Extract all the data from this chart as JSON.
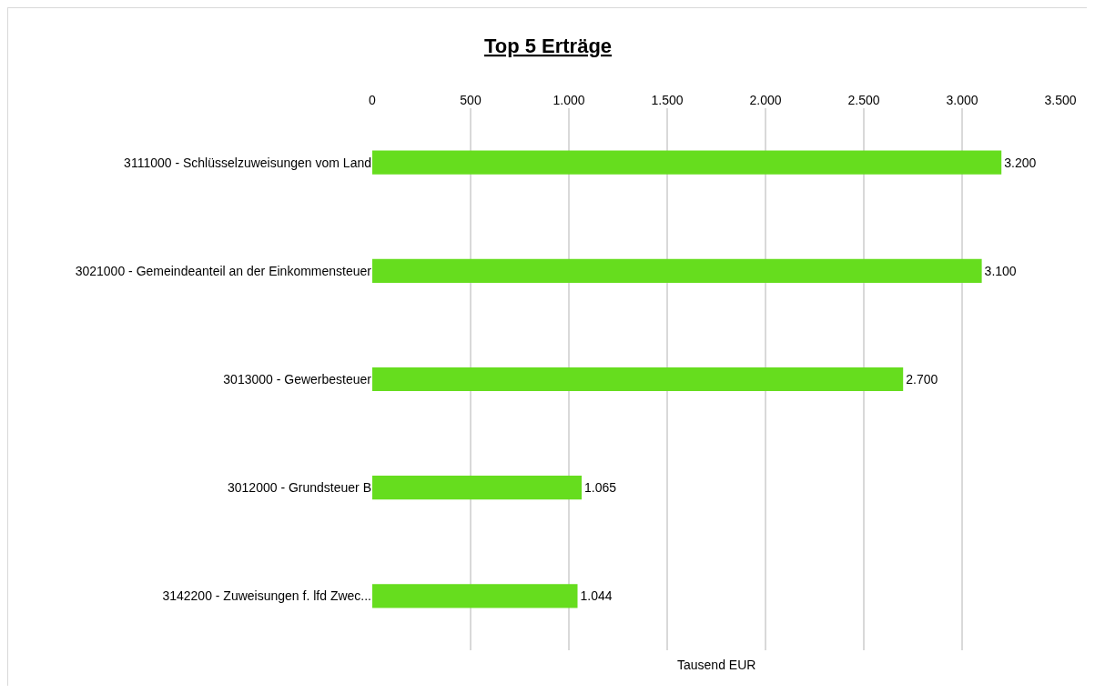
{
  "chart_data": {
    "type": "bar",
    "title": "Top 5 Erträge",
    "xlabel": "Tausend EUR",
    "orientation": "horizontal",
    "categories": [
      "3111000 - Schlüsselzuweisungen vom Land",
      "3021000 - Gemeindeanteil an der Einkommensteuer",
      "3013000 - Gewerbesteuer",
      "3012000 - Grundsteuer B",
      "3142200 - Zuweisungen f. lfd Zwec..."
    ],
    "values": [
      3200,
      3100,
      2700,
      1065,
      1044
    ],
    "value_labels": [
      "3.200",
      "3.100",
      "2.700",
      "1.065",
      "1.044"
    ],
    "color": "#66dd1e",
    "xlim": [
      0,
      3500
    ],
    "xticks": [
      0,
      500,
      {
        "value": 1000,
        "label": "1.000"
      },
      {
        "value": 1500,
        "label": "1.500"
      },
      {
        "value": 2000,
        "label": "2.000"
      },
      {
        "value": 2500,
        "label": "2.500"
      },
      {
        "value": 3000,
        "label": "3.000"
      },
      {
        "value": 3500,
        "label": "3.500"
      }
    ],
    "grid": "x",
    "legend": false
  }
}
